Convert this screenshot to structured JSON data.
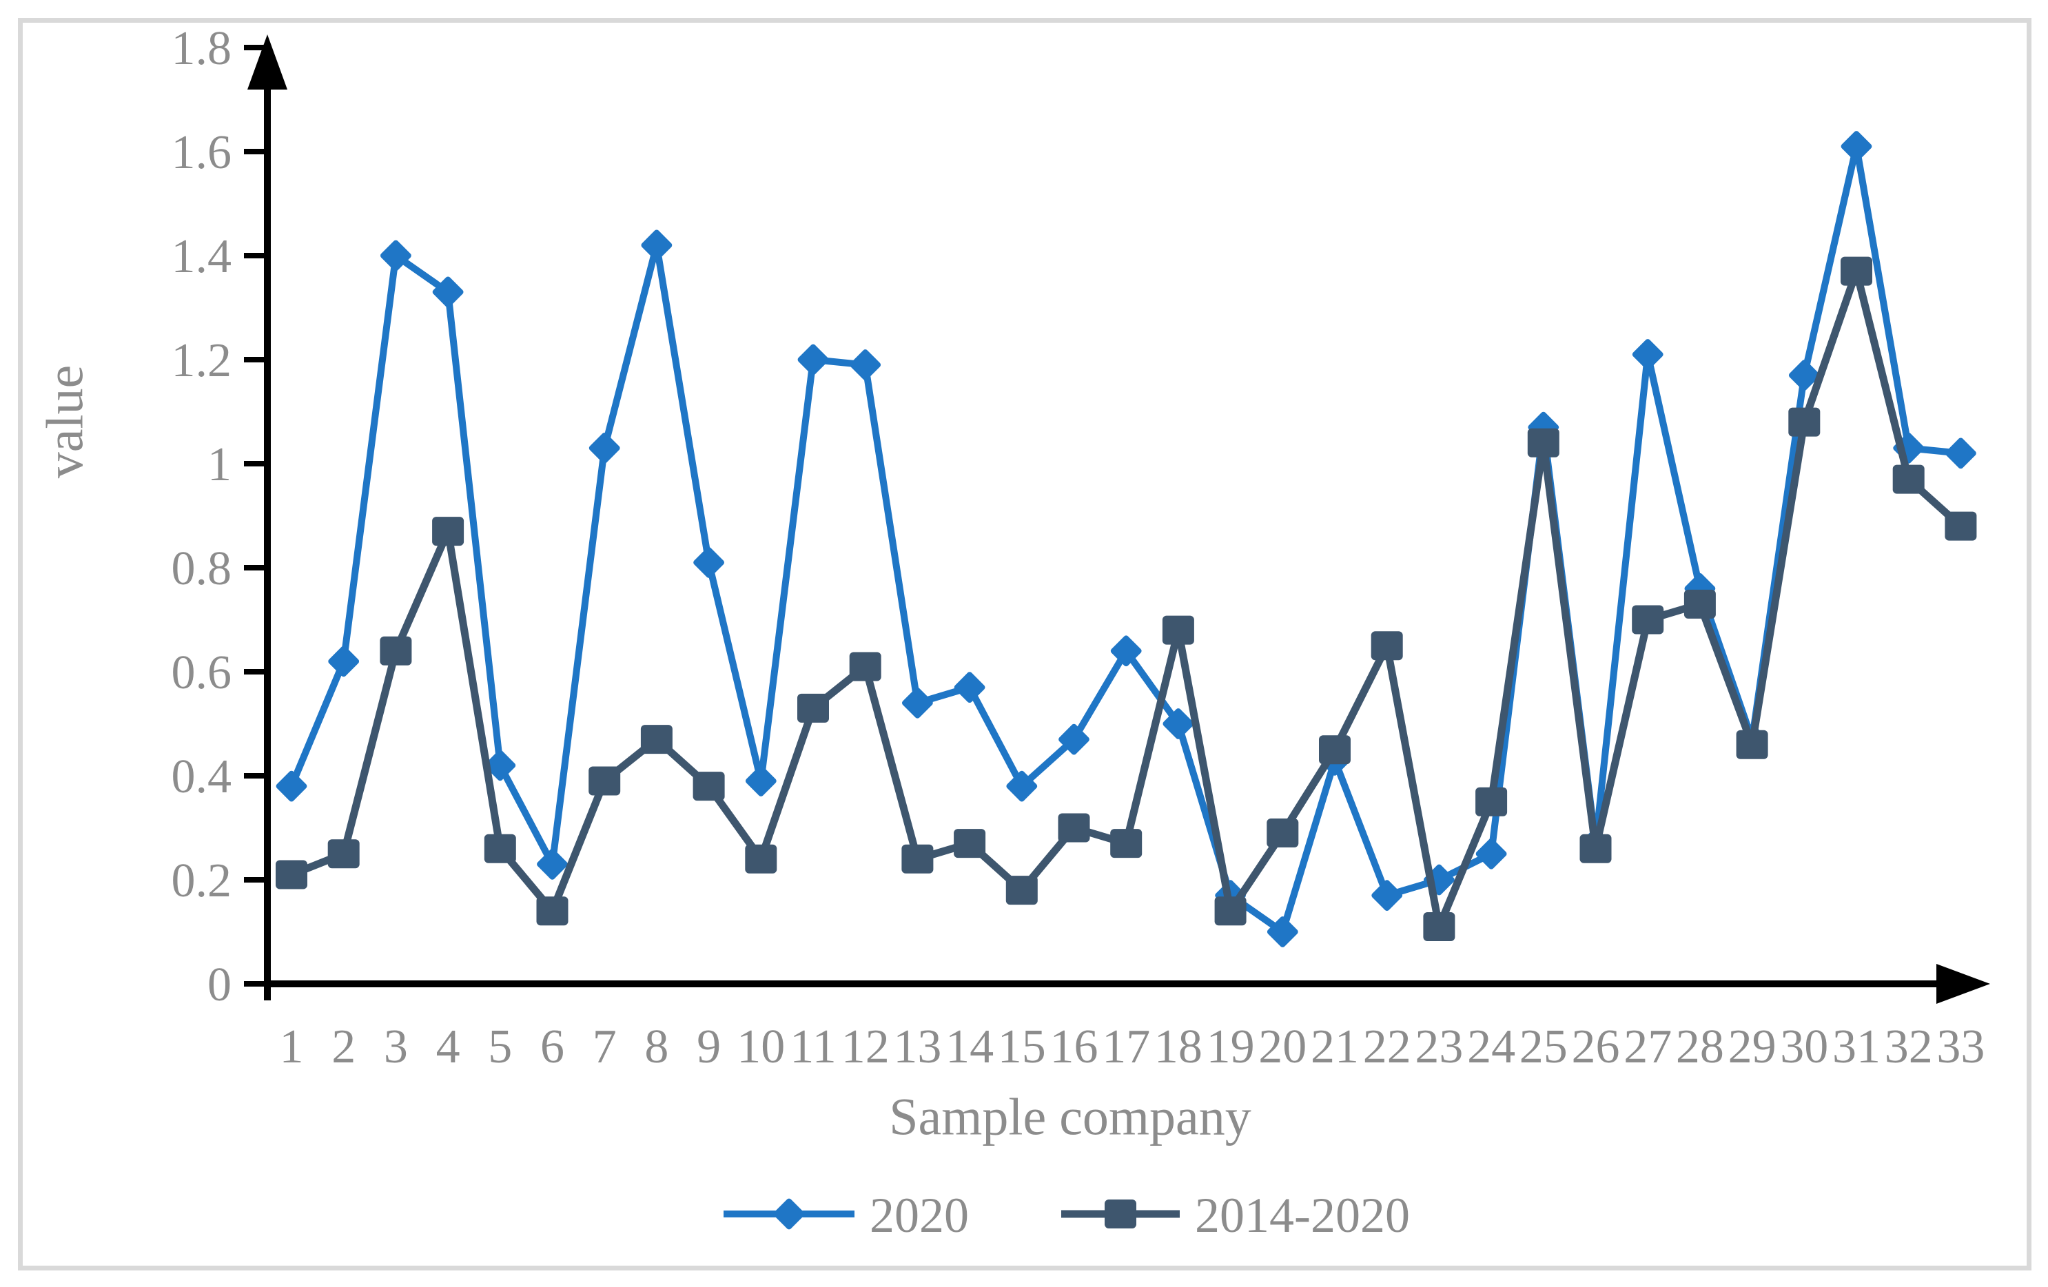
{
  "figure": {
    "background_color": "#ffffff",
    "border_color": "#d9d9d9",
    "text_color": "#8c8c8c",
    "axis_color": "#000000"
  },
  "chart_data": {
    "type": "line",
    "title": "",
    "xlabel": "Sample company",
    "ylabel": "value",
    "categories": [
      1,
      2,
      3,
      4,
      5,
      6,
      7,
      8,
      9,
      10,
      11,
      12,
      13,
      14,
      15,
      16,
      17,
      18,
      19,
      20,
      21,
      22,
      23,
      24,
      25,
      26,
      27,
      28,
      29,
      30,
      31,
      32,
      33
    ],
    "series": [
      {
        "name": "2020",
        "marker": "diamond",
        "color": "#1f76c6",
        "values": [
          0.38,
          0.62,
          1.4,
          1.33,
          0.42,
          0.23,
          1.03,
          1.42,
          0.81,
          0.39,
          1.2,
          1.19,
          0.54,
          0.57,
          0.38,
          0.47,
          0.64,
          0.5,
          0.17,
          0.1,
          0.43,
          0.17,
          0.2,
          0.25,
          1.07,
          0.27,
          1.21,
          0.76,
          0.47,
          1.17,
          1.61,
          1.03,
          1.02
        ]
      },
      {
        "name": "2014-2020",
        "marker": "square",
        "color": "#3e566e",
        "values": [
          0.21,
          0.25,
          0.64,
          0.87,
          0.26,
          0.14,
          0.39,
          0.47,
          0.38,
          0.24,
          0.53,
          0.61,
          0.24,
          0.27,
          0.18,
          0.3,
          0.27,
          0.68,
          0.14,
          0.29,
          0.45,
          0.65,
          0.11,
          0.35,
          1.04,
          0.26,
          0.7,
          0.73,
          0.46,
          1.08,
          1.37,
          0.97,
          0.88
        ]
      }
    ],
    "ylim": [
      0,
      1.8
    ],
    "yticks": [
      0,
      0.2,
      0.4,
      0.6,
      0.8,
      1,
      1.2,
      1.4,
      1.6,
      1.8
    ],
    "ytick_labels": [
      "0",
      "0.2",
      "0.4",
      "0.6",
      "0.8",
      "1",
      "1.2",
      "1.4",
      "1.6",
      "1.8"
    ],
    "grid": false,
    "legend_position": "bottom"
  },
  "legend": {
    "items": [
      {
        "label": "2020"
      },
      {
        "label": "2014-2020"
      }
    ]
  }
}
